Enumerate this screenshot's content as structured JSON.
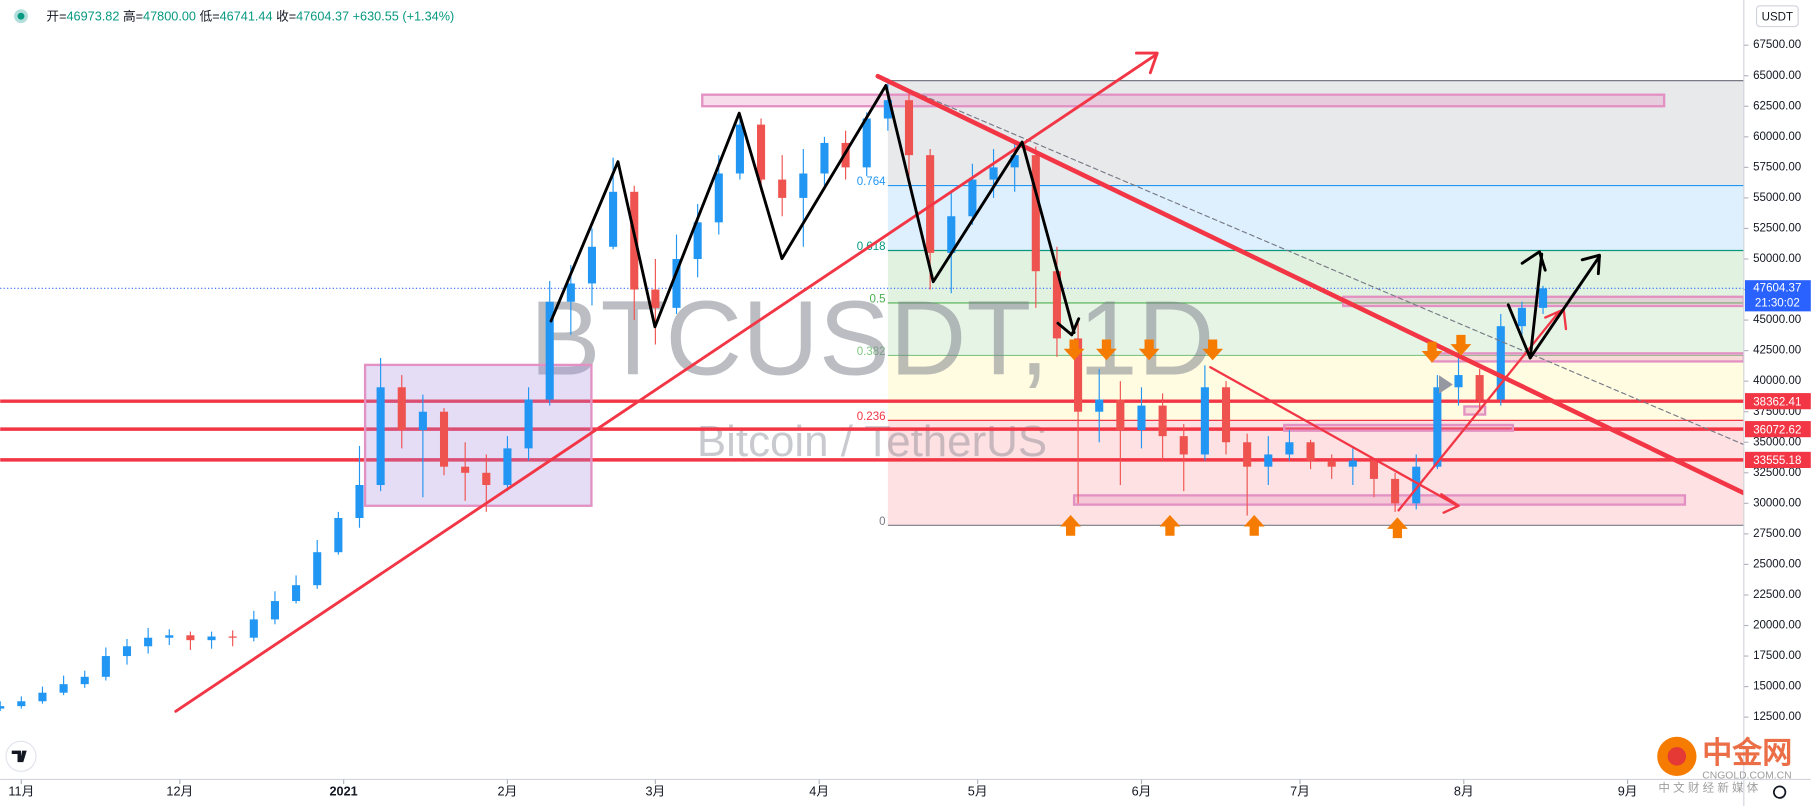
{
  "chart_data": {
    "type": "candlestick",
    "header": {
      "open_label": "开=",
      "open": "46973.82",
      "high_label": "高=",
      "high": "47800.00",
      "low_label": "低=",
      "low": "46741.44",
      "close_label": "收=",
      "close": "47604.37",
      "change": "+630.55 (+1.34%)"
    },
    "watermark": {
      "symbol": "BTCUSDT, 1D",
      "description": "Bitcoin / TetherUS"
    },
    "currency": "USDT",
    "up_color": "#2196f3",
    "down_color": "#ef5350",
    "x": [
      -4,
      0,
      4,
      8,
      12,
      16,
      20,
      24,
      28,
      32,
      36,
      40,
      44,
      48,
      52,
      56,
      60,
      64,
      68,
      72,
      76,
      80,
      84,
      88,
      92,
      96,
      100,
      104,
      108,
      112,
      116,
      120,
      124,
      128,
      132,
      136,
      140,
      144,
      148,
      152,
      156,
      160,
      164,
      168,
      172,
      176,
      180,
      184,
      188,
      192,
      196,
      200,
      204,
      208,
      212,
      216,
      220,
      224,
      228,
      232,
      236,
      240,
      244,
      248,
      252,
      256,
      260,
      264,
      268,
      272,
      276,
      280,
      284,
      288
    ],
    "open": [
      13200,
      13400,
      13800,
      14500,
      15200,
      15800,
      17500,
      18300,
      19000,
      19200,
      18800,
      19100,
      19000,
      20500,
      22000,
      23300,
      26000,
      28800,
      31500,
      39500,
      36000,
      37500,
      33000,
      32500,
      31500,
      34500,
      38500,
      46500,
      48000,
      51000,
      55500,
      47500,
      46000,
      50000,
      53000,
      57000,
      61000,
      56500,
      55000,
      57000,
      59500,
      57500,
      61500,
      63000,
      58500,
      50500,
      53500,
      56500,
      57500,
      58500,
      49000,
      43500,
      37500,
      38500,
      36000,
      38000,
      35500,
      34000,
      39500,
      35000,
      33000,
      34000,
      35000,
      33500,
      33000,
      33500,
      32000,
      30000,
      33000,
      39500,
      40500,
      38500,
      44500,
      46000
    ],
    "high": [
      13800,
      14200,
      15000,
      15900,
      16300,
      18200,
      18900,
      19800,
      19700,
      19500,
      19500,
      19600,
      21200,
      22800,
      24100,
      27000,
      29300,
      34700,
      41900,
      40500,
      38900,
      37800,
      35000,
      34000,
      35500,
      39500,
      48200,
      49500,
      52500,
      58300,
      56000,
      50000,
      52000,
      54500,
      58500,
      61800,
      61500,
      58500,
      59000,
      60000,
      60500,
      62000,
      64800,
      63500,
      59000,
      55500,
      57800,
      59000,
      59500,
      59200,
      51000,
      45000,
      41000,
      40000,
      39500,
      39000,
      36500,
      41300,
      40000,
      35700,
      35500,
      36000,
      35200,
      34000,
      34500,
      33500,
      32500,
      34000,
      40500,
      42500,
      41000,
      45500,
      46500,
      47800
    ],
    "low": [
      13000,
      13200,
      13600,
      14300,
      14900,
      15500,
      16800,
      17700,
      18400,
      18000,
      18100,
      18300,
      18700,
      20100,
      21800,
      23000,
      25800,
      28000,
      31000,
      34500,
      30500,
      32300,
      30200,
      29300,
      31000,
      33500,
      38000,
      43800,
      46200,
      50800,
      45000,
      43000,
      45500,
      48500,
      52000,
      56500,
      55500,
      53500,
      51000,
      56000,
      56500,
      56800,
      60500,
      56500,
      47500,
      47200,
      52800,
      55000,
      55500,
      46000,
      42000,
      30000,
      35000,
      31500,
      34500,
      33500,
      31000,
      33500,
      34000,
      29000,
      31500,
      33500,
      32800,
      32000,
      31500,
      30500,
      29300,
      29500,
      32800,
      38000,
      37500,
      38000,
      43500,
      45500
    ],
    "close": [
      13400,
      13800,
      14500,
      15200,
      15800,
      17500,
      18300,
      19000,
      19200,
      18800,
      19100,
      19000,
      20500,
      22000,
      23300,
      26000,
      28800,
      31500,
      39500,
      36000,
      37500,
      33000,
      32500,
      31500,
      34500,
      38500,
      46500,
      48000,
      51000,
      55500,
      47500,
      46000,
      50000,
      53000,
      57000,
      61000,
      56500,
      55000,
      57000,
      59500,
      57500,
      61500,
      63000,
      58500,
      50500,
      53500,
      56500,
      57500,
      58500,
      49000,
      43500,
      37500,
      38500,
      36000,
      38000,
      35500,
      34000,
      39500,
      35000,
      33000,
      34000,
      35000,
      33500,
      33000,
      33500,
      32000,
      30000,
      33000,
      39500,
      40500,
      38500,
      44500,
      46000,
      47600
    ],
    "xlim": [
      -4,
      326
    ],
    "xticks": [
      {
        "value": 0,
        "label": "11月"
      },
      {
        "value": 30,
        "label": "12月"
      },
      {
        "value": 61,
        "label": "2021",
        "bold": true
      },
      {
        "value": 92,
        "label": "2月"
      },
      {
        "value": 120,
        "label": "3月"
      },
      {
        "value": 151,
        "label": "4月"
      },
      {
        "value": 181,
        "label": "5月"
      },
      {
        "value": 212,
        "label": "6月"
      },
      {
        "value": 242,
        "label": "7月"
      },
      {
        "value": 273,
        "label": "8月"
      },
      {
        "value": 304,
        "label": "9月"
      }
    ],
    "ylim": [
      7400,
      71200
    ],
    "yticks": [
      {
        "value": 12500,
        "label": "12500.00"
      },
      {
        "value": 15000,
        "label": "15000.00"
      },
      {
        "value": 17500,
        "label": "17500.00"
      },
      {
        "value": 20000,
        "label": "20000.00"
      },
      {
        "value": 22500,
        "label": "22500.00"
      },
      {
        "value": 25000,
        "label": "25000.00"
      },
      {
        "value": 27500,
        "label": "27500.00"
      },
      {
        "value": 30000,
        "label": "30000.00"
      },
      {
        "value": 32500,
        "label": "32500.00"
      },
      {
        "value": 35000,
        "label": "35000.00"
      },
      {
        "value": 37500,
        "label": "37500.00"
      },
      {
        "value": 40000,
        "label": "40000.00"
      },
      {
        "value": 42500,
        "label": "42500.00"
      },
      {
        "value": 45000,
        "label": "45000.00"
      },
      {
        "value": 47500,
        "label": "47500.00"
      },
      {
        "value": 50000,
        "label": "50000.00"
      },
      {
        "value": 52500,
        "label": "52500.00"
      },
      {
        "value": 55000,
        "label": "55000.00"
      },
      {
        "value": 57500,
        "label": "57500.00"
      },
      {
        "value": 60000,
        "label": "60000.00"
      },
      {
        "value": 62500,
        "label": "62500.00"
      },
      {
        "value": 65000,
        "label": "65000.00"
      },
      {
        "value": 67500,
        "label": "67500.00"
      }
    ],
    "fib": {
      "start": 164,
      "low": 28200,
      "high": 64600,
      "levels": [
        0,
        0.236,
        0.382,
        0.5,
        0.618,
        0.764
      ],
      "band_colors": [
        "rgba(242,54,69,0.15)",
        "rgba(255,235,59,0.15)",
        "rgba(76,175,80,0.14)",
        "rgba(76,175,80,0.17)",
        "rgba(33,150,243,0.15)",
        "rgba(120,123,134,0.17)"
      ],
      "line_colors": [
        "#787b86",
        "#f23645",
        "#81c784",
        "#4caf50",
        "#089981",
        "#2196f3"
      ]
    },
    "price_lines": [
      {
        "value": 38362.41,
        "color": "#f23645"
      },
      {
        "value": 36072.62,
        "color": "#f23645"
      },
      {
        "value": 33555.18,
        "color": "#f23645"
      }
    ],
    "last_price": {
      "value": 47604.37,
      "countdown": "21:30:02",
      "color": "#2962ff"
    },
    "branding": {
      "name": "中金网",
      "site": "CNGOLD.COM.CN",
      "slogan": "中 文 财 经 新 媒 体"
    }
  }
}
